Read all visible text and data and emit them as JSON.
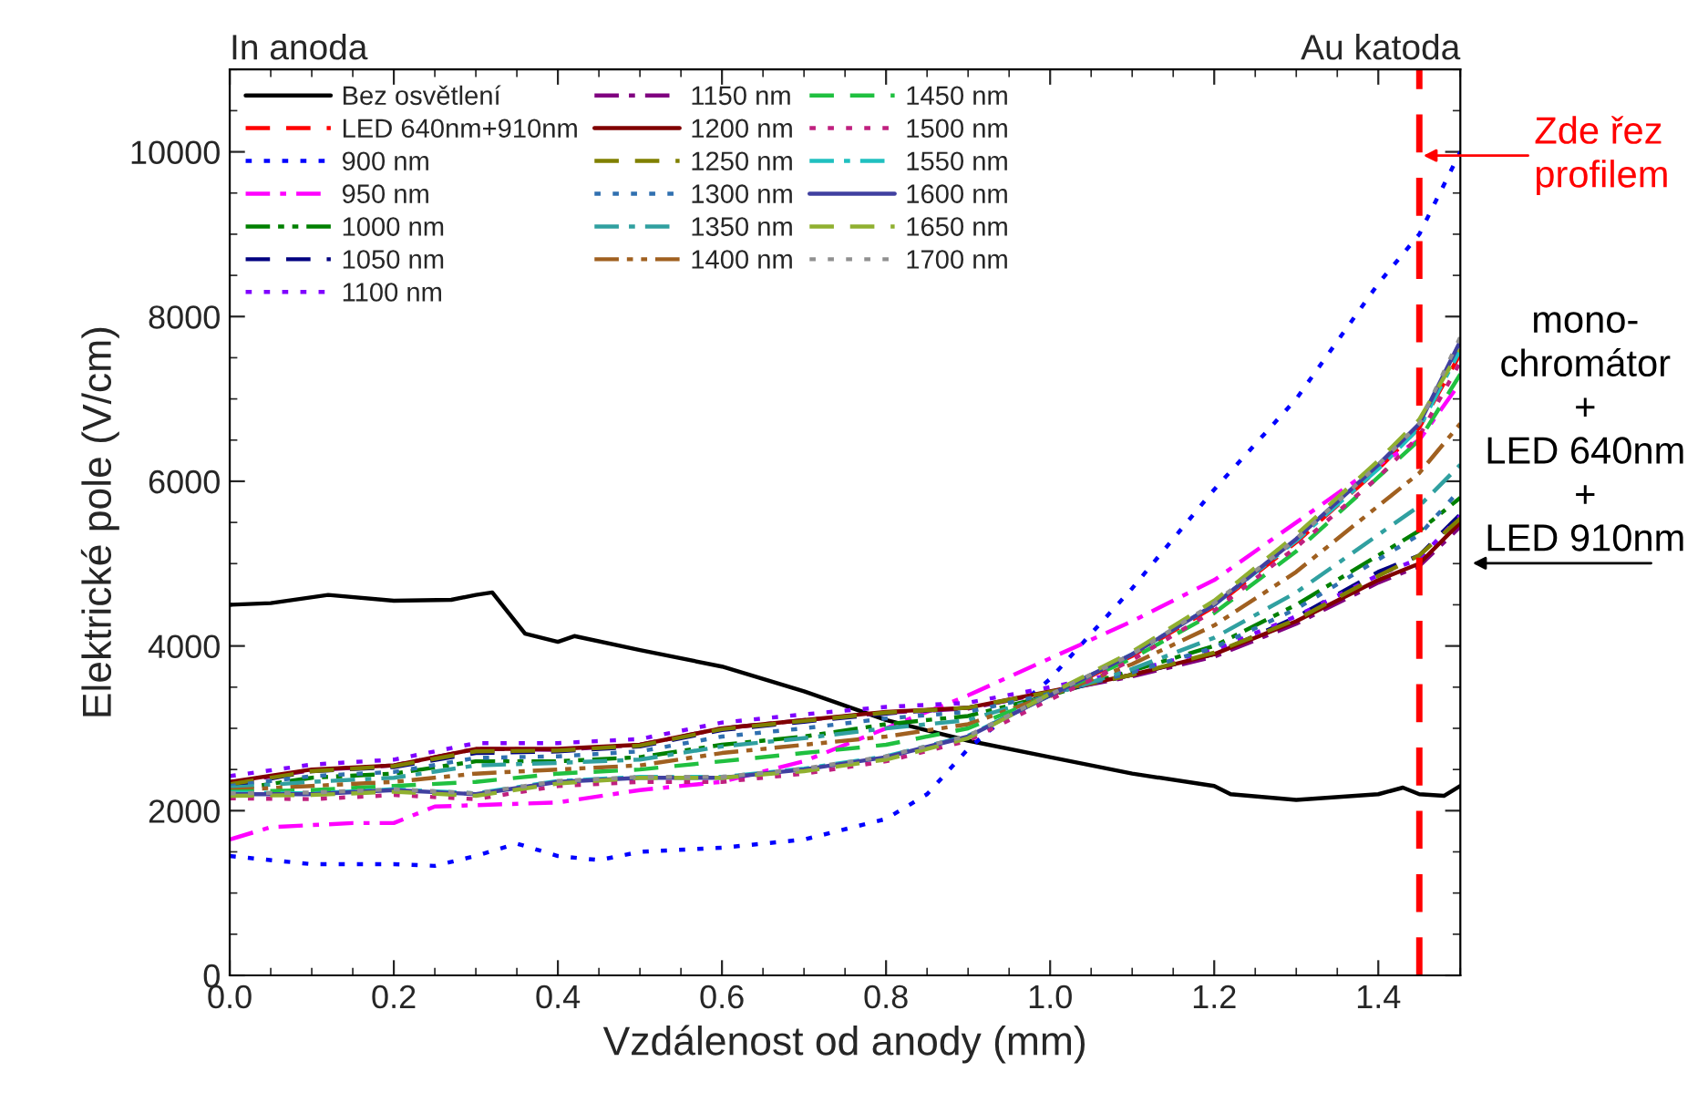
{
  "chart_data": {
    "type": "line",
    "xlabel": "Vzdálenost od anody (mm)",
    "ylabel": "Elektrické pole (V/cm)",
    "x": [
      0,
      0.1,
      0.2,
      0.3,
      0.4,
      0.5,
      0.6,
      0.7,
      0.8,
      0.9,
      1.0,
      1.1,
      1.2,
      1.3,
      1.4,
      1.45,
      1.5
    ],
    "xlim": [
      0,
      1.5
    ],
    "ylim": [
      0,
      11000
    ],
    "xticks": [
      {
        "value": 0,
        "label": "0.0"
      },
      {
        "value": 0.2,
        "label": "0.2"
      },
      {
        "value": 0.4,
        "label": "0.4"
      },
      {
        "value": 0.6,
        "label": "0.6"
      },
      {
        "value": 0.8,
        "label": "0.8"
      },
      {
        "value": 1.0,
        "label": "1.0"
      },
      {
        "value": 1.2,
        "label": "1.2"
      },
      {
        "value": 1.4,
        "label": "1.4"
      }
    ],
    "yticks": [
      0,
      2000,
      4000,
      6000,
      8000,
      10000
    ],
    "grid": false,
    "legend": "top left",
    "marker": "none",
    "series": [
      {
        "name": "Bez osvětlení",
        "color": "#000000",
        "line_style": "solid",
        "x": [
          0,
          0.05,
          0.12,
          0.2,
          0.27,
          0.3,
          0.32,
          0.36,
          0.4,
          0.42,
          0.5,
          0.6,
          0.7,
          0.8,
          0.9,
          1.0,
          1.1,
          1.2,
          1.22,
          1.3,
          1.4,
          1.43,
          1.45,
          1.48,
          1.5
        ],
        "values": [
          4500,
          4520,
          4620,
          4550,
          4560,
          4620,
          4650,
          4150,
          4050,
          4120,
          3950,
          3750,
          3450,
          3100,
          2850,
          2650,
          2450,
          2300,
          2200,
          2130,
          2200,
          2280,
          2200,
          2180,
          2300
        ]
      },
      {
        "name": "LED 640nm+910nm",
        "color": "#ff0000",
        "line_style": "dashed",
        "values": [
          null,
          null,
          null,
          null,
          null,
          null,
          null,
          null,
          null,
          null,
          3390,
          3880,
          4480,
          5260,
          6150,
          6650,
          7550
        ]
      },
      {
        "name": "900 nm",
        "color": "#0000ff",
        "line_style": "dotted",
        "x": [
          0,
          0.1,
          0.2,
          0.25,
          0.3,
          0.35,
          0.4,
          0.45,
          0.5,
          0.6,
          0.7,
          0.8,
          0.85,
          0.9,
          1.0,
          1.1,
          1.2,
          1.3,
          1.4,
          1.45,
          1.5
        ],
        "values": [
          1450,
          1350,
          1350,
          1330,
          1450,
          1600,
          1450,
          1400,
          1500,
          1550,
          1650,
          1900,
          2200,
          2750,
          3600,
          4700,
          5900,
          7000,
          8400,
          9000,
          10000
        ]
      },
      {
        "name": "950 nm",
        "color": "#ff00ff",
        "line_style": "dashdot",
        "x": [
          0,
          0.05,
          0.15,
          0.2,
          0.25,
          0.4,
          0.5,
          0.6,
          0.7,
          0.8,
          0.9,
          1.0,
          1.1,
          1.2,
          1.3,
          1.4,
          1.45,
          1.5
        ],
        "values": [
          1650,
          1800,
          1850,
          1850,
          2050,
          2100,
          2250,
          2350,
          2600,
          3000,
          3400,
          3850,
          4300,
          4800,
          5500,
          6200,
          6500,
          7200
        ]
      },
      {
        "name": "1000 nm",
        "color": "#008000",
        "line_style": "dashdotdot",
        "values": [
          2250,
          2400,
          2450,
          2600,
          2600,
          2650,
          2800,
          2900,
          3050,
          3150,
          3400,
          3700,
          4000,
          4500,
          5100,
          5400,
          5800
        ]
      },
      {
        "name": "1050 nm",
        "color": "#000080",
        "line_style": "dashed",
        "values": [
          2300,
          2480,
          2530,
          2700,
          2720,
          2780,
          2980,
          3080,
          3180,
          3250,
          3430,
          3650,
          3900,
          4350,
          4900,
          5100,
          5600
        ]
      },
      {
        "name": "1100 nm",
        "color": "#8000ff",
        "line_style": "dotted",
        "values": [
          2420,
          2560,
          2620,
          2820,
          2820,
          2870,
          3070,
          3170,
          3260,
          3310,
          3500,
          3700,
          3950,
          4360,
          4860,
          5060,
          5580
        ]
      },
      {
        "name": "1150 nm",
        "color": "#800080",
        "line_style": "dashdot",
        "values": [
          2340,
          2490,
          2550,
          2750,
          2740,
          2800,
          3000,
          3100,
          3190,
          3240,
          3440,
          3630,
          3870,
          4270,
          4770,
          4970,
          5450
        ]
      },
      {
        "name": "1200 nm",
        "color": "#800000",
        "line_style": "solid",
        "values": [
          2350,
          2500,
          2550,
          2750,
          2750,
          2800,
          3000,
          3100,
          3200,
          3250,
          3450,
          3650,
          3900,
          4300,
          4800,
          5000,
          5500
        ]
      },
      {
        "name": "1250 nm",
        "color": "#808000",
        "line_style": "dashed",
        "values": [
          2320,
          2480,
          2540,
          2720,
          2730,
          2790,
          2990,
          3090,
          3190,
          3250,
          3440,
          3650,
          3920,
          4320,
          4850,
          5100,
          5550
        ]
      },
      {
        "name": "1300 nm",
        "color": "#3070b0",
        "line_style": "dotted",
        "values": [
          2300,
          2420,
          2470,
          2640,
          2660,
          2720,
          2900,
          3000,
          3120,
          3200,
          3420,
          3680,
          3980,
          4450,
          5050,
          5350,
          5900
        ]
      },
      {
        "name": "1350 nm",
        "color": "#30a0a0",
        "line_style": "dashdot",
        "values": [
          2280,
          2350,
          2400,
          2550,
          2580,
          2620,
          2780,
          2880,
          3000,
          3100,
          3400,
          3720,
          4100,
          4650,
          5350,
          5700,
          6200
        ]
      },
      {
        "name": "1400 nm",
        "color": "#a06020",
        "line_style": "dashdotdot",
        "values": [
          2250,
          2300,
          2350,
          2450,
          2500,
          2550,
          2700,
          2800,
          2900,
          3050,
          3400,
          3780,
          4250,
          4900,
          5700,
          6100,
          6700
        ]
      },
      {
        "name": "1450 nm",
        "color": "#20c040",
        "line_style": "dashed",
        "values": [
          2230,
          2250,
          2300,
          2350,
          2450,
          2500,
          2600,
          2700,
          2800,
          3000,
          3400,
          3850,
          4400,
          5150,
          6050,
          6500,
          7300
        ]
      },
      {
        "name": "1500 nm",
        "color": "#c0207f",
        "line_style": "dotted",
        "values": [
          2150,
          2140,
          2190,
          2140,
          2300,
          2350,
          2350,
          2450,
          2600,
          2850,
          3350,
          3830,
          4430,
          5200,
          6050,
          6550,
          7450
        ]
      },
      {
        "name": "1550 nm",
        "color": "#20c0c0",
        "line_style": "dashdot",
        "values": [
          2220,
          2210,
          2260,
          2210,
          2360,
          2410,
          2410,
          2510,
          2660,
          2910,
          3400,
          3900,
          4500,
          5280,
          6150,
          6650,
          7600
        ]
      },
      {
        "name": "1600 nm",
        "color": "#4040a0",
        "line_style": "solid",
        "values": [
          2200,
          2200,
          2250,
          2200,
          2350,
          2400,
          2400,
          2500,
          2650,
          2900,
          3400,
          3900,
          4500,
          5300,
          6200,
          6700,
          7700
        ]
      },
      {
        "name": "1650 nm",
        "color": "#90b030",
        "line_style": "dashed",
        "values": [
          2180,
          2190,
          2230,
          2180,
          2330,
          2400,
          2400,
          2480,
          2620,
          2880,
          3420,
          3930,
          4550,
          5350,
          6250,
          6750,
          7600
        ]
      },
      {
        "name": "1700 nm",
        "color": "#909090",
        "line_style": "dotted",
        "values": [
          2210,
          2220,
          2260,
          2210,
          2360,
          2410,
          2410,
          2510,
          2660,
          2910,
          3410,
          3900,
          4520,
          5300,
          6200,
          6700,
          7750
        ]
      }
    ],
    "ref_lines": [
      {
        "axis": "x",
        "value": 1.45,
        "label": null,
        "color": "#ff0000",
        "line_style": "dashed"
      }
    ],
    "annotations": [
      "In anoda",
      "Au katoda",
      "Zde řez\nprofilem",
      "mono-\nchromátor\n+\nLED 640nm\n+\nLED 910nm"
    ]
  }
}
